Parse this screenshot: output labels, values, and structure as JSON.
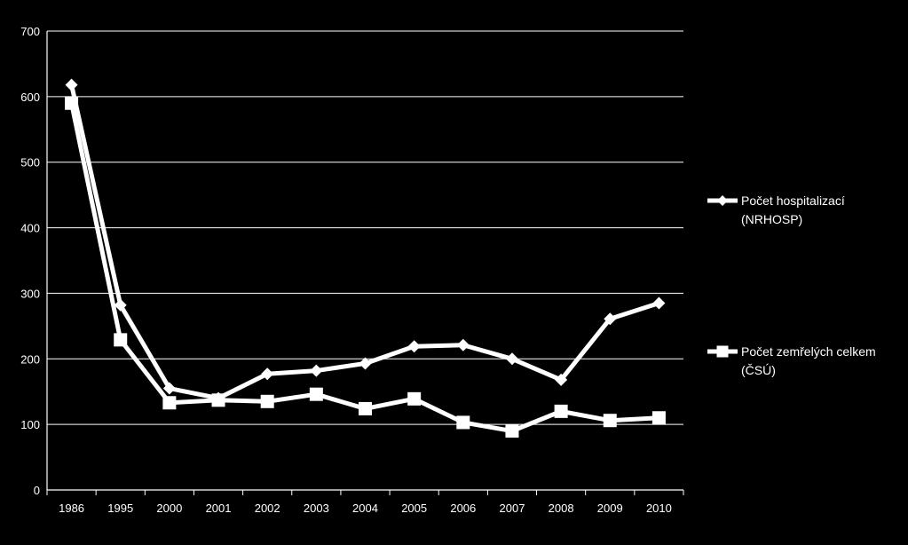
{
  "chart_data": {
    "type": "line",
    "categories": [
      "1986",
      "1995",
      "2000",
      "2001",
      "2002",
      "2003",
      "2004",
      "2005",
      "2006",
      "2007",
      "2008",
      "2009",
      "2010"
    ],
    "ylim": [
      0,
      700
    ],
    "yticks": [
      0,
      100,
      200,
      300,
      400,
      500,
      600,
      700
    ],
    "grid": true,
    "legend_position": "right",
    "series": [
      {
        "name": "Počet hospitalizací (NRHOSP)",
        "legend_lines": [
          "Počet hospitalizací",
          "(NRHOSP)"
        ],
        "marker": "diamond",
        "values": [
          618,
          282,
          155,
          140,
          177,
          182,
          193,
          219,
          221,
          200,
          168,
          261,
          285
        ]
      },
      {
        "name": "Počet zemřelých celkem (ČSÚ)",
        "legend_lines": [
          "Počet zemřelých celkem",
          "(ČSÚ)"
        ],
        "marker": "square",
        "values": [
          590,
          229,
          133,
          137,
          135,
          146,
          124,
          139,
          103,
          90,
          120,
          106,
          110
        ]
      }
    ],
    "colors": {
      "background": "#000000",
      "line": "#ffffff",
      "grid": "#ffffff"
    }
  }
}
